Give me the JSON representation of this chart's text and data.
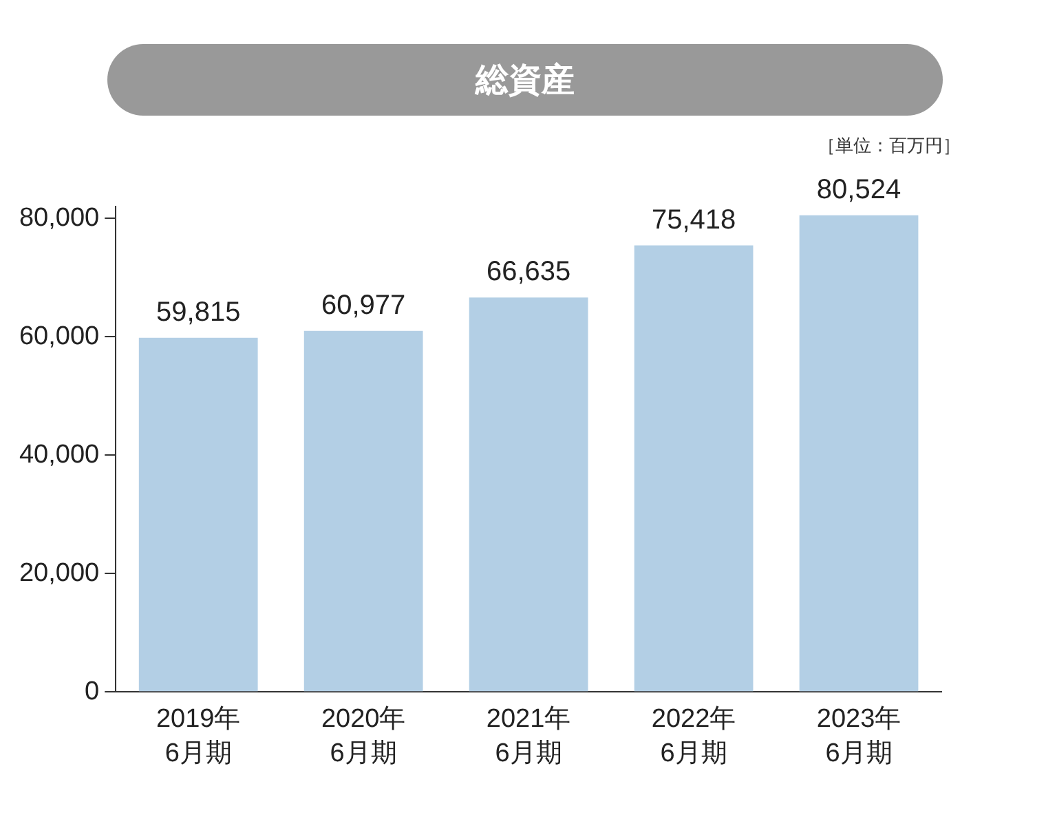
{
  "chart_data": {
    "type": "bar",
    "title": "総資産",
    "annotations": [
      "［単位：百万円］"
    ],
    "categories": [
      "2019年\n6月期",
      "2020年\n6月期",
      "2021年\n6月期",
      "2022年\n6月期",
      "2023年\n6月期"
    ],
    "values": [
      59815,
      60977,
      66635,
      75418,
      80524
    ],
    "color": "#b3cfe5",
    "ylim": [
      0,
      82000
    ],
    "yticks": [
      {
        "value": 0,
        "label": "0"
      },
      {
        "value": 20000,
        "label": "20,000"
      },
      {
        "value": 40000,
        "label": "40,000"
      },
      {
        "value": 60000,
        "label": "60,000"
      },
      {
        "value": 80000,
        "label": "80,000"
      }
    ],
    "value_labels": [
      "59,815",
      "60,977",
      "66,635",
      "75,418",
      "80,524"
    ],
    "grid": false,
    "legend": false
  }
}
